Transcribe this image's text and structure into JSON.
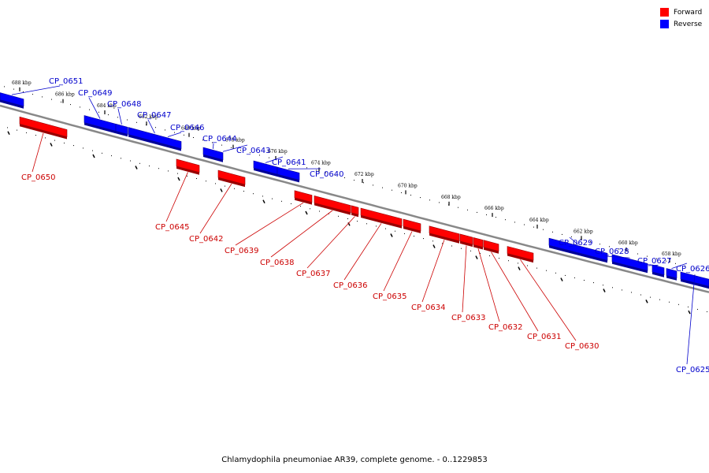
{
  "legend": [
    {
      "label": "Forward",
      "color": "#ff0000"
    },
    {
      "label": "Reverse",
      "color": "#0000ff"
    }
  ],
  "caption": "Chlamydophila pneumoniae AR39, complete genome. - 0..1229853",
  "colors": {
    "forward": "#ff0000",
    "reverse": "#0000ff",
    "axis": "#888888",
    "label_forward": "#cc0000",
    "label_reverse": "#0000cc"
  },
  "ticks": [
    "688 kbp",
    "686 kbp",
    "684 kbp",
    "682 kbp",
    "680 kbp",
    "678 kbp",
    "676 kbp",
    "674 kbp",
    "672 kbp",
    "670 kbp",
    "668 kbp",
    "666 kbp",
    "664 kbp",
    "662 kbp",
    "660 kbp",
    "658 kbp"
  ],
  "genes": [
    {
      "name": "CP_0651",
      "strand": "reverse"
    },
    {
      "name": "CP_0650",
      "strand": "forward"
    },
    {
      "name": "CP_0649",
      "strand": "reverse"
    },
    {
      "name": "CP_0648",
      "strand": "reverse"
    },
    {
      "name": "CP_0647",
      "strand": "reverse"
    },
    {
      "name": "CP_0646",
      "strand": "reverse"
    },
    {
      "name": "CP_0645",
      "strand": "forward"
    },
    {
      "name": "CP_0644",
      "strand": "reverse"
    },
    {
      "name": "CP_0643",
      "strand": "reverse"
    },
    {
      "name": "CP_0642",
      "strand": "forward"
    },
    {
      "name": "CP_0641",
      "strand": "reverse"
    },
    {
      "name": "CP_0640",
      "strand": "reverse"
    },
    {
      "name": "CP_0639",
      "strand": "forward"
    },
    {
      "name": "CP_0638",
      "strand": "forward"
    },
    {
      "name": "CP_0637",
      "strand": "forward"
    },
    {
      "name": "CP_0636",
      "strand": "forward"
    },
    {
      "name": "CP_0635",
      "strand": "forward"
    },
    {
      "name": "CP_0634",
      "strand": "forward"
    },
    {
      "name": "CP_0633",
      "strand": "forward"
    },
    {
      "name": "CP_0632",
      "strand": "forward"
    },
    {
      "name": "CP_0631",
      "strand": "forward"
    },
    {
      "name": "CP_0630",
      "strand": "forward"
    },
    {
      "name": "CP_0629",
      "strand": "reverse"
    },
    {
      "name": "CP_0628",
      "strand": "reverse"
    },
    {
      "name": "CP_0627",
      "strand": "reverse"
    },
    {
      "name": "CP_0626",
      "strand": "reverse"
    },
    {
      "name": "CP_0625",
      "strand": "reverse"
    }
  ]
}
